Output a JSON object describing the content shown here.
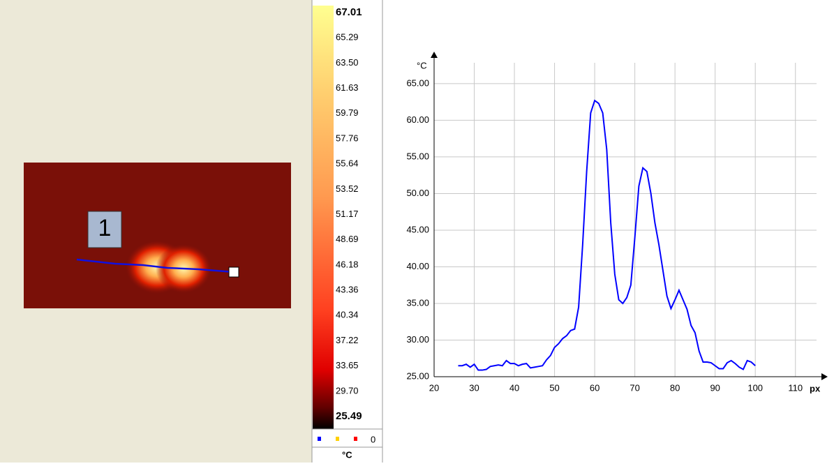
{
  "roi_label": "1",
  "colorbar": {
    "labels": [
      "67.01",
      "65.29",
      "63.50",
      "61.63",
      "59.79",
      "57.76",
      "55.64",
      "53.52",
      "51.17",
      "48.69",
      "46.18",
      "43.36",
      "40.34",
      "37.22",
      "33.65",
      "29.70",
      "25.49"
    ],
    "count": "0",
    "unit": "°C"
  },
  "chart_data": {
    "type": "line",
    "x_label": "px",
    "y_label": "°C",
    "x": [
      26,
      27,
      28,
      29,
      30,
      31,
      32,
      33,
      34,
      35,
      36,
      37,
      38,
      39,
      40,
      41,
      42,
      43,
      44,
      45,
      46,
      47,
      48,
      49,
      50,
      51,
      52,
      53,
      54,
      55,
      56,
      57,
      58,
      59,
      60,
      61,
      62,
      63,
      64,
      65,
      66,
      67,
      68,
      69,
      70,
      71,
      72,
      73,
      74,
      75,
      76,
      77,
      78,
      79,
      80,
      81,
      82,
      83,
      84,
      85,
      86,
      87,
      88,
      89,
      90,
      91,
      92,
      93,
      94,
      95,
      96,
      97,
      98,
      99,
      100
    ],
    "series": [
      {
        "color": "#0000ff",
        "values": [
          26.5,
          26.5,
          26.7,
          26.3,
          26.7,
          25.9,
          25.9,
          26.0,
          26.4,
          26.5,
          26.6,
          26.5,
          27.2,
          26.8,
          26.8,
          26.5,
          26.7,
          26.8,
          26.2,
          26.3,
          26.4,
          26.5,
          27.3,
          27.9,
          29.0,
          29.5,
          30.2,
          30.6,
          31.3,
          31.5,
          34.5,
          43,
          53,
          61,
          62.7,
          62.3,
          61,
          56,
          46,
          39,
          35.5,
          35,
          35.8,
          37.5,
          44,
          51,
          53.5,
          53,
          50,
          46,
          43,
          39.5,
          36,
          34.3,
          35.5,
          36.8,
          35.5,
          34.2,
          32,
          31,
          28.5,
          27,
          27,
          26.9,
          26.5,
          26.1,
          26.1,
          26.9,
          27.2,
          26.8,
          26.3,
          26.0,
          27.2,
          27.0,
          26.5
        ]
      }
    ],
    "xlim": [
      20,
      117
    ],
    "xticks": [
      20,
      30,
      40,
      50,
      60,
      70,
      80,
      90,
      100,
      110
    ],
    "ylim": [
      25,
      68.8
    ],
    "yticks": [
      {
        "value": 25,
        "label": "25.00"
      },
      {
        "value": 30,
        "label": "30.00"
      },
      {
        "value": 35,
        "label": "35.00"
      },
      {
        "value": 40,
        "label": "40.00"
      },
      {
        "value": 45,
        "label": "45.00"
      },
      {
        "value": 50,
        "label": "50.00"
      },
      {
        "value": 55,
        "label": "55.00"
      },
      {
        "value": 60,
        "label": "60.00"
      },
      {
        "value": 65,
        "label": "65.00"
      }
    ],
    "grid": true
  }
}
